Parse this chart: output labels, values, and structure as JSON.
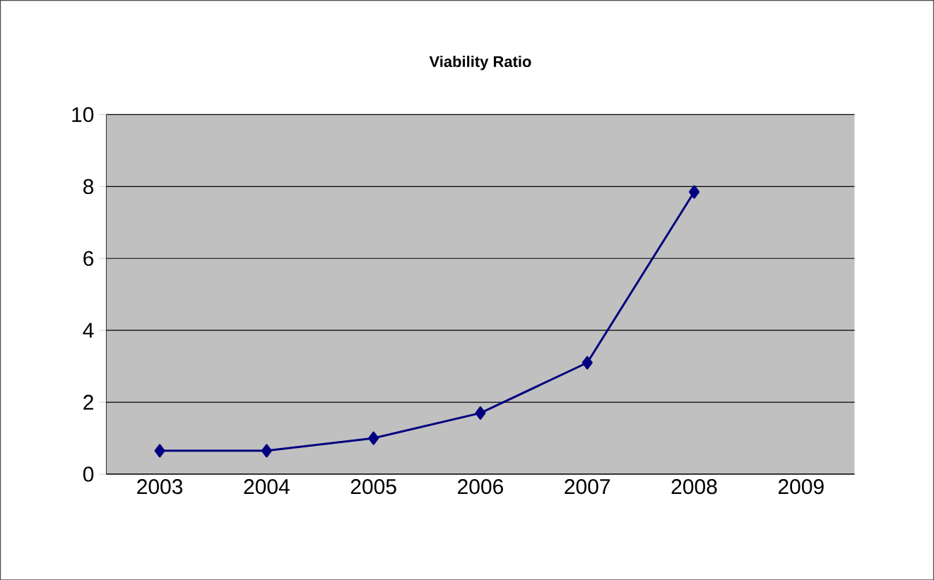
{
  "chart_data": {
    "type": "line",
    "title": "Viability Ratio",
    "categories": [
      "2003",
      "2004",
      "2005",
      "2006",
      "2007",
      "2008",
      "2009"
    ],
    "series": [
      {
        "color": "#000080",
        "values": [
          0.65,
          0.65,
          1.0,
          1.7,
          3.1,
          7.85,
          null
        ]
      }
    ],
    "ylim": [
      0,
      10
    ],
    "yticks": [
      0,
      2,
      4,
      6,
      8,
      10
    ],
    "grid": "y",
    "marker": "diamond",
    "line_style": "solid"
  }
}
